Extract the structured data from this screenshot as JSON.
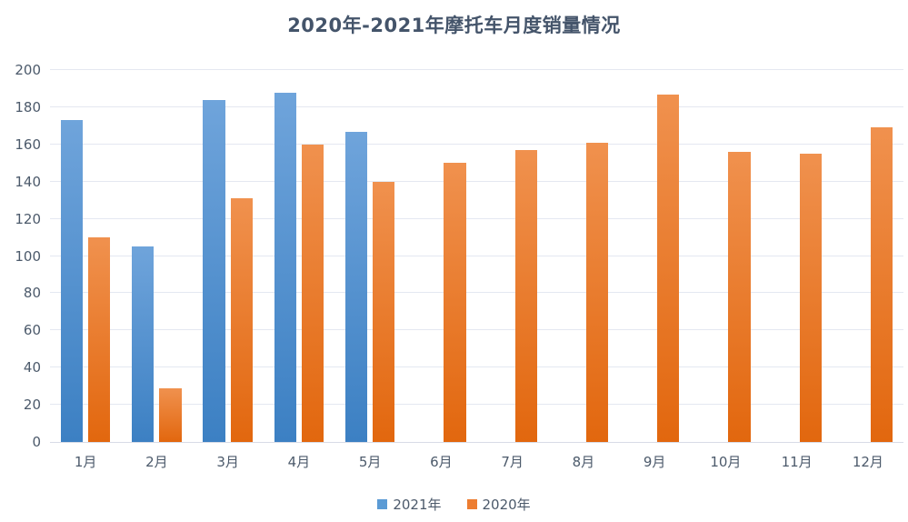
{
  "chart_data": {
    "type": "bar",
    "title": "2020年-2021年摩托车月度销量情况",
    "categories": [
      "1月",
      "2月",
      "3月",
      "4月",
      "5月",
      "6月",
      "7月",
      "8月",
      "9月",
      "10月",
      "11月",
      "12月"
    ],
    "series": [
      {
        "name": "2021年",
        "legend_color": "#5B9BD5",
        "gradient_top": "#6FA4DB",
        "gradient_bottom": "#3C80C3",
        "values": [
          173,
          105,
          184,
          188,
          167,
          null,
          null,
          null,
          null,
          null,
          null,
          null
        ]
      },
      {
        "name": "2020年",
        "legend_color": "#ED7D31",
        "gradient_top": "#F0914E",
        "gradient_bottom": "#E2670E",
        "values": [
          110,
          29,
          131,
          160,
          140,
          150,
          157,
          161,
          187,
          156,
          155,
          169
        ]
      }
    ],
    "ylim": [
      0,
      200
    ],
    "ytick_step": 20,
    "ytick_labels": [
      "0",
      "20",
      "40",
      "60",
      "80",
      "100",
      "120",
      "140",
      "160",
      "180",
      "200"
    ],
    "grid": "horizontal",
    "legend_position": "bottom",
    "xlabel": "",
    "ylabel": ""
  },
  "colors": {
    "title": "#44546A",
    "axis_text": "#4C5A6B",
    "gridline": "#E4E8F1",
    "axis_line": "#D8DCE7",
    "series_2021": "#5B9BD5",
    "series_2020": "#ED7D31",
    "background": "#FFFFFF"
  }
}
